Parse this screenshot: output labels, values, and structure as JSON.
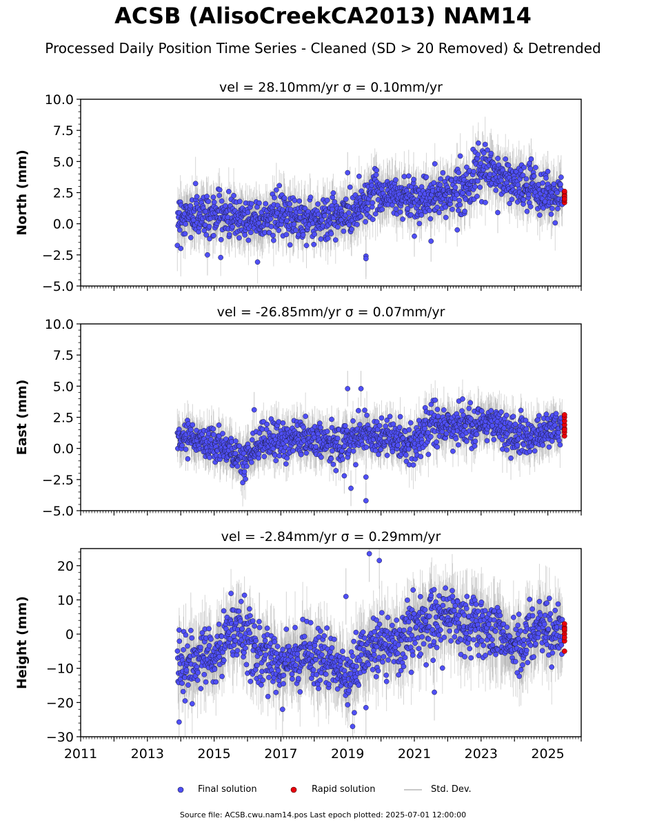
{
  "header": {
    "title": "ACSB (AlisoCreekCA2013) NAM14",
    "subtitle": "Processed Daily Position Time Series - Cleaned (SD > 20 Removed) & Detrended"
  },
  "legend": {
    "final": "Final solution",
    "rapid": "Rapid solution",
    "std": "Std. Dev."
  },
  "footer": {
    "source": "Source file: ACSB.cwu.nam14.pos  Last epoch plotted: 2025-07-01 12:00:00"
  },
  "colors": {
    "final": "#4f4ff5",
    "rapid": "#e8000b",
    "std": "#c8c8c8",
    "std_dense": "#707070",
    "marker_edge": "#1a1a3a"
  },
  "chart_data": [
    {
      "type": "scatter",
      "title": "vel = 28.10mm/yr   σ = 0.10mm/yr",
      "ylabel": "North (mm)",
      "xlim": [
        2011,
        2026
      ],
      "ylim": [
        -5,
        10
      ],
      "yticks": [
        -5.0,
        -2.5,
        0.0,
        2.5,
        5.0,
        7.5,
        10.0
      ],
      "ytick_labels": [
        "−5.0",
        "−2.5",
        "0.0",
        "2.5",
        "5.0",
        "7.5",
        "10.0"
      ],
      "data_range": [
        2013.9,
        2025.5
      ],
      "trend": [
        [
          2013.9,
          0.6
        ],
        [
          2015.0,
          0.8
        ],
        [
          2016.0,
          0.4
        ],
        [
          2017.0,
          0.7
        ],
        [
          2018.0,
          0.3
        ],
        [
          2019.0,
          0.6
        ],
        [
          2019.8,
          2.6
        ],
        [
          2020.5,
          2.2
        ],
        [
          2021.5,
          2.0
        ],
        [
          2022.5,
          3.0
        ],
        [
          2023.2,
          4.4
        ],
        [
          2024.0,
          3.2
        ],
        [
          2025.0,
          2.3
        ],
        [
          2025.5,
          2.3
        ]
      ],
      "scatter_sd": 0.85,
      "errorbar_half": 1.5,
      "outliers": [
        [
          2014.8,
          -2.5
        ],
        [
          2019.0,
          4.1
        ],
        [
          2019.55,
          -2.6
        ],
        [
          2019.55,
          -2.8
        ],
        [
          2021.0,
          -1.0
        ],
        [
          2021.5,
          -1.4
        ],
        [
          2023.5,
          0.9
        ],
        [
          2024.5,
          5.2
        ],
        [
          2025.0,
          4.2
        ]
      ],
      "rapid": {
        "x": 2025.5,
        "values": [
          1.7,
          1.9,
          2.1,
          2.3,
          2.5,
          2.6,
          2.2,
          2.0
        ]
      }
    },
    {
      "type": "scatter",
      "title": "vel = -26.85mm/yr   σ = 0.07mm/yr",
      "ylabel": "East (mm)",
      "xlim": [
        2011,
        2026
      ],
      "ylim": [
        -5,
        10
      ],
      "yticks": [
        -5.0,
        -2.5,
        0.0,
        2.5,
        5.0,
        7.5,
        10.0
      ],
      "ytick_labels": [
        "−5.0",
        "−2.5",
        "0.0",
        "2.5",
        "5.0",
        "7.5",
        "10.0"
      ],
      "data_range": [
        2013.9,
        2025.5
      ],
      "trend": [
        [
          2013.9,
          1.2
        ],
        [
          2015.0,
          0.3
        ],
        [
          2015.9,
          -0.8
        ],
        [
          2016.5,
          0.5
        ],
        [
          2017.5,
          0.8
        ],
        [
          2018.5,
          0.3
        ],
        [
          2019.5,
          1.2
        ],
        [
          2020.3,
          1.0
        ],
        [
          2020.9,
          0.2
        ],
        [
          2021.5,
          2.0
        ],
        [
          2022.5,
          1.8
        ],
        [
          2023.3,
          2.2
        ],
        [
          2024.0,
          1.0
        ],
        [
          2025.0,
          1.5
        ],
        [
          2025.5,
          1.8
        ]
      ],
      "scatter_sd": 0.75,
      "errorbar_half": 1.3,
      "outliers": [
        [
          2019.0,
          4.8
        ],
        [
          2019.4,
          4.8
        ],
        [
          2019.1,
          -3.2
        ],
        [
          2019.55,
          -2.3
        ],
        [
          2019.55,
          -4.2
        ],
        [
          2018.9,
          -2.2
        ],
        [
          2016.2,
          3.1
        ]
      ],
      "rapid": {
        "x": 2025.5,
        "values": [
          1.0,
          1.3,
          1.6,
          1.9,
          2.2,
          2.5,
          2.7,
          1.5
        ]
      }
    },
    {
      "type": "scatter",
      "title": "vel = -2.84mm/yr   σ = 0.29mm/yr",
      "ylabel": "Height (mm)",
      "xlim": [
        2011,
        2026
      ],
      "ylim": [
        -30,
        25
      ],
      "yticks": [
        -30,
        -20,
        -10,
        0,
        10,
        20
      ],
      "ytick_labels": [
        "−30",
        "−20",
        "−10",
        "0",
        "10",
        "20"
      ],
      "data_range": [
        2013.9,
        2025.5
      ],
      "trend": [
        [
          2013.9,
          -9
        ],
        [
          2015.0,
          -7
        ],
        [
          2015.6,
          3
        ],
        [
          2016.3,
          -6
        ],
        [
          2017.0,
          -9
        ],
        [
          2017.8,
          -5
        ],
        [
          2018.5,
          -8
        ],
        [
          2019.0,
          -14
        ],
        [
          2019.6,
          -4
        ],
        [
          2020.5,
          -2
        ],
        [
          2021.3,
          4
        ],
        [
          2022.0,
          5
        ],
        [
          2022.8,
          2
        ],
        [
          2023.5,
          0
        ],
        [
          2024.0,
          -3
        ],
        [
          2024.8,
          2
        ],
        [
          2025.5,
          0
        ]
      ],
      "scatter_sd": 4.3,
      "errorbar_half": 7.5,
      "outliers": [
        [
          2019.65,
          23.5
        ],
        [
          2019.95,
          21.5
        ],
        [
          2018.95,
          11
        ],
        [
          2019.15,
          -27
        ],
        [
          2019.55,
          -21.5
        ],
        [
          2013.95,
          -25.7
        ],
        [
          2021.6,
          -17
        ],
        [
          2017.05,
          -22
        ]
      ],
      "rapid": {
        "x": 2025.5,
        "values": [
          -5,
          -2,
          0,
          1,
          2,
          3,
          -1,
          1.5
        ]
      }
    }
  ],
  "xaxis": {
    "ticks": [
      2011,
      2013,
      2015,
      2017,
      2019,
      2021,
      2023,
      2025
    ],
    "tick_labels": [
      "2011",
      "2013",
      "2015",
      "2017",
      "2019",
      "2021",
      "2023",
      "2025"
    ]
  }
}
